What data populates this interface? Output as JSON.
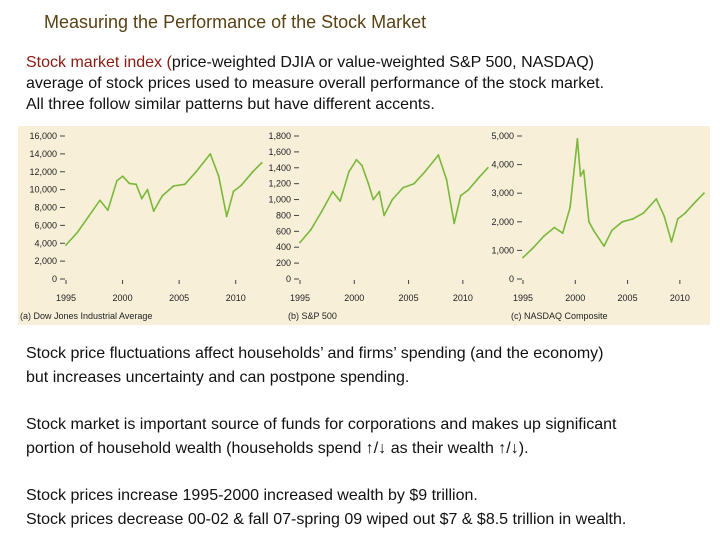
{
  "title": "Measuring the Performance of the Stock Market",
  "intro": {
    "highlight": "Stock market index (",
    "rest_line1": "price-weighted DJIA or value-weighted S&P 500, NASDAQ)",
    "line2": "average of stock prices used to measure overall performance of the stock market.",
    "line3": "All three follow similar patterns but have different accents."
  },
  "paragraphs": {
    "p1_line1": "Stock price fluctuations affect households’ and firms’ spending (and the economy)",
    "p1_line2": "but increases uncertainty and can postpone spending.",
    "p2_line1": "Stock market is important source of funds for corporations and makes up significant",
    "p2_line2": "portion of household wealth (households spend ↑/↓ as their wealth ↑/↓).",
    "p3_line1": "Stock prices increase 1995-2000 increased wealth by $9 trillion.",
    "p3_line2": "Stock prices decrease 00-02 & fall 07-spring 09 wiped out $7 & $8.5 trillion in wealth."
  },
  "colors": {
    "title": "#5a4215",
    "highlight": "#8b1a10",
    "line": "#7ab83a",
    "figure_bg": "#f7efd8"
  },
  "chart_data": [
    {
      "type": "line",
      "label": "(a) Dow Jones Industrial Average",
      "xlim": [
        1995,
        2012.5
      ],
      "ylim": [
        0,
        16000
      ],
      "yticks": [
        0,
        2000,
        4000,
        6000,
        8000,
        10000,
        12000,
        14000,
        16000
      ],
      "ytick_labels": [
        "0",
        "2,000",
        "4,000",
        "6,000",
        "8,000",
        "10,000",
        "12,000",
        "14,000",
        "16,000"
      ],
      "xticks": [
        1995,
        2000,
        2005,
        2010
      ],
      "xtick_labels": [
        "1995",
        "2000",
        "2005",
        "2010"
      ],
      "x": [
        1995,
        1996,
        1997,
        1998,
        1998.7,
        1999.5,
        2000,
        2000.6,
        2001.2,
        2001.7,
        2002.2,
        2002.75,
        2003.5,
        2004.5,
        2005.5,
        2006.5,
        2007.75,
        2008.5,
        2009.2,
        2009.8,
        2010.5,
        2011.5,
        2012.3
      ],
      "y": [
        3800,
        5200,
        7000,
        8800,
        7700,
        11000,
        11500,
        10700,
        10600,
        9000,
        10000,
        7600,
        9300,
        10400,
        10600,
        12000,
        14000,
        11500,
        7000,
        9800,
        10500,
        12000,
        13000
      ]
    },
    {
      "type": "line",
      "label": "(b) S&P 500",
      "xlim": [
        1995,
        2012.5
      ],
      "ylim": [
        0,
        1800
      ],
      "yticks": [
        0,
        200,
        400,
        600,
        800,
        1000,
        1200,
        1400,
        1600,
        1800
      ],
      "ytick_labels": [
        "0",
        "200",
        "400",
        "600",
        "800",
        "1,000",
        "1,200",
        "1,400",
        "1,600",
        "1,800"
      ],
      "xticks": [
        1995,
        2000,
        2005,
        2010
      ],
      "xtick_labels": [
        "1995",
        "2000",
        "2005",
        "2010"
      ],
      "x": [
        1995,
        1996,
        1997,
        1998,
        1998.7,
        1999.5,
        2000.2,
        2000.7,
        2001.3,
        2001.75,
        2002.3,
        2002.75,
        2003.5,
        2004.5,
        2005.5,
        2006.5,
        2007.75,
        2008.5,
        2009.2,
        2009.8,
        2010.5,
        2011.5,
        2012.3
      ],
      "y": [
        460,
        620,
        850,
        1100,
        980,
        1350,
        1500,
        1430,
        1200,
        1000,
        1100,
        800,
        1000,
        1150,
        1200,
        1350,
        1560,
        1250,
        700,
        1050,
        1120,
        1280,
        1400
      ]
    },
    {
      "type": "line",
      "label": "(c) NASDAQ Composite",
      "xlim": [
        1995,
        2012.5
      ],
      "ylim": [
        0,
        5000
      ],
      "yticks": [
        0,
        1000,
        2000,
        3000,
        4000,
        5000
      ],
      "ytick_labels": [
        "0",
        "1,000",
        "2,000",
        "3,000",
        "4,000",
        "5,000"
      ],
      "xticks": [
        1995,
        2000,
        2005,
        2010
      ],
      "xtick_labels": [
        "1995",
        "2000",
        "2005",
        "2010"
      ],
      "x": [
        1995,
        1996,
        1997,
        1998,
        1998.8,
        1999.5,
        2000.2,
        2000.5,
        2000.8,
        2001.3,
        2001.75,
        2002.75,
        2003.5,
        2004.5,
        2005.5,
        2006.5,
        2007.75,
        2008.5,
        2009.2,
        2009.8,
        2010.5,
        2011.5,
        2012.3
      ],
      "y": [
        750,
        1100,
        1500,
        1800,
        1600,
        2500,
        4900,
        3600,
        3800,
        2000,
        1700,
        1150,
        1700,
        2000,
        2100,
        2300,
        2800,
        2200,
        1300,
        2100,
        2300,
        2700,
        3000
      ]
    }
  ]
}
